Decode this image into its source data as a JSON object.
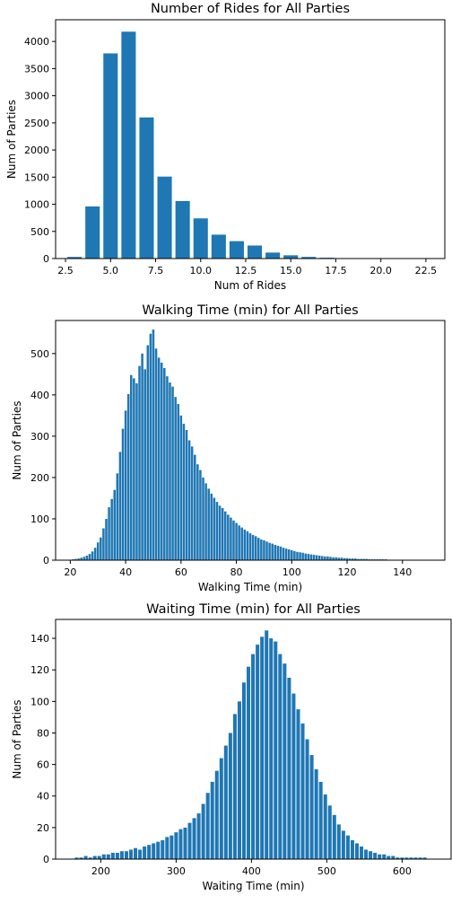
{
  "bar_color": "#1f77b4",
  "chart_data": [
    {
      "type": "bar",
      "title": "Number of Rides for All Parties",
      "xlabel": "Num of Rides",
      "ylabel": "Num of Parties",
      "xlim": [
        1.95,
        23.55
      ],
      "ylim": [
        0,
        4400
      ],
      "xticks": [
        2.5,
        5.0,
        7.5,
        10.0,
        12.5,
        15.0,
        17.5,
        20.0,
        22.5
      ],
      "xtick_labels": [
        "2.5",
        "5.0",
        "7.5",
        "10.0",
        "12.5",
        "15.0",
        "17.5",
        "20.0",
        "22.5"
      ],
      "yticks": [
        0,
        500,
        1000,
        1500,
        2000,
        2500,
        3000,
        3500,
        4000
      ],
      "ytick_labels": [
        "0",
        "500",
        "1000",
        "1500",
        "2000",
        "2500",
        "3000",
        "3500",
        "4000"
      ],
      "x": [
        3,
        4,
        5,
        6,
        7,
        8,
        9,
        10,
        11,
        12,
        13,
        14,
        15,
        16,
        17,
        18,
        19,
        20,
        21,
        22,
        23
      ],
      "values": [
        30,
        960,
        3780,
        4180,
        2600,
        1510,
        1060,
        740,
        440,
        320,
        240,
        110,
        60,
        30,
        15,
        8,
        5,
        4,
        3,
        2,
        2
      ]
    },
    {
      "type": "bar",
      "title": "Walking Time (min) for All Parties",
      "xlabel": "Walking Time (min)",
      "ylabel": "Num of Parties",
      "xlim": [
        14.7,
        155.3
      ],
      "ylim": [
        0,
        580
      ],
      "xticks": [
        20,
        40,
        60,
        80,
        100,
        120,
        140
      ],
      "xtick_labels": [
        "20",
        "40",
        "60",
        "80",
        "100",
        "120",
        "140"
      ],
      "yticks": [
        0,
        100,
        200,
        300,
        400,
        500
      ],
      "ytick_labels": [
        "0",
        "100",
        "200",
        "300",
        "400",
        "500"
      ],
      "x": [
        21,
        22,
        23,
        24,
        25,
        26,
        27,
        28,
        29,
        30,
        31,
        32,
        33,
        34,
        35,
        36,
        37,
        38,
        39,
        40,
        41,
        42,
        43,
        44,
        45,
        46,
        47,
        48,
        49,
        50,
        51,
        52,
        53,
        54,
        55,
        56,
        57,
        58,
        59,
        60,
        61,
        62,
        63,
        64,
        65,
        66,
        67,
        68,
        69,
        70,
        71,
        72,
        73,
        74,
        75,
        76,
        77,
        78,
        79,
        80,
        81,
        82,
        83,
        84,
        85,
        86,
        87,
        88,
        89,
        90,
        91,
        92,
        93,
        94,
        95,
        96,
        97,
        98,
        99,
        100,
        101,
        102,
        103,
        104,
        105,
        106,
        107,
        108,
        109,
        110,
        111,
        112,
        113,
        114,
        115,
        116,
        117,
        118,
        119,
        120,
        121,
        122,
        123,
        124,
        125,
        126,
        127,
        128,
        129,
        130,
        131,
        132,
        133,
        134,
        135,
        136,
        137,
        138,
        139,
        140,
        141,
        142,
        143,
        144,
        145,
        146,
        147,
        148,
        149
      ],
      "values": [
        2,
        3,
        4,
        6,
        8,
        11,
        15,
        21,
        30,
        43,
        55,
        77,
        100,
        128,
        148,
        170,
        210,
        262,
        318,
        362,
        402,
        448,
        440,
        428,
        470,
        500,
        462,
        520,
        548,
        558,
        512,
        490,
        478,
        465,
        445,
        430,
        420,
        395,
        378,
        350,
        330,
        315,
        290,
        275,
        255,
        232,
        218,
        200,
        186,
        173,
        161,
        151,
        141,
        132,
        126,
        118,
        110,
        103,
        96,
        90,
        84,
        79,
        74,
        70,
        65,
        61,
        58,
        54,
        50,
        48,
        45,
        42,
        40,
        37,
        35,
        33,
        30,
        28,
        26,
        24,
        22,
        20,
        19,
        18,
        16,
        15,
        14,
        13,
        12,
        11,
        10,
        9,
        9,
        8,
        7,
        7,
        6,
        6,
        5,
        5,
        4,
        4,
        4,
        3,
        3,
        3,
        3,
        2,
        2,
        2,
        2,
        2,
        2,
        2,
        1,
        1,
        1,
        1,
        1,
        1,
        1,
        1,
        1,
        1,
        1,
        1,
        1,
        1,
        1
      ]
    },
    {
      "type": "bar",
      "title": "Waiting Time (min) for All Parties",
      "xlabel": "Waiting Time (min)",
      "ylabel": "Num of Parties",
      "xlim": [
        140,
        665
      ],
      "ylim": [
        0,
        152
      ],
      "xticks": [
        200,
        300,
        400,
        500,
        600
      ],
      "xtick_labels": [
        "200",
        "300",
        "400",
        "500",
        "600"
      ],
      "yticks": [
        0,
        20,
        40,
        60,
        80,
        100,
        120,
        140
      ],
      "ytick_labels": [
        "0",
        "20",
        "40",
        "60",
        "80",
        "100",
        "120",
        "140"
      ],
      "x": [
        168,
        174,
        180,
        186,
        192,
        198,
        204,
        210,
        216,
        222,
        228,
        234,
        240,
        246,
        252,
        258,
        264,
        270,
        276,
        282,
        288,
        294,
        300,
        306,
        312,
        318,
        324,
        330,
        336,
        342,
        348,
        354,
        360,
        366,
        372,
        378,
        384,
        390,
        396,
        402,
        408,
        414,
        420,
        426,
        432,
        438,
        444,
        450,
        456,
        462,
        468,
        474,
        480,
        486,
        492,
        498,
        504,
        510,
        516,
        522,
        528,
        534,
        540,
        546,
        552,
        558,
        564,
        570,
        576,
        582,
        588,
        594,
        600,
        606,
        612,
        618,
        624,
        630
      ],
      "values": [
        1,
        1,
        2,
        1,
        2,
        2,
        3,
        3,
        4,
        4,
        5,
        5,
        6,
        7,
        6,
        8,
        9,
        10,
        11,
        12,
        14,
        15,
        17,
        19,
        20,
        23,
        26,
        29,
        35,
        42,
        49,
        56,
        64,
        72,
        80,
        92,
        100,
        112,
        122,
        130,
        136,
        141,
        145,
        140,
        138,
        130,
        124,
        115,
        105,
        95,
        86,
        76,
        66,
        57,
        49,
        41,
        34,
        28,
        22,
        18,
        15,
        12,
        10,
        8,
        6,
        5,
        4,
        3,
        3,
        2,
        2,
        1,
        1,
        1,
        1,
        1,
        1,
        1
      ]
    }
  ]
}
